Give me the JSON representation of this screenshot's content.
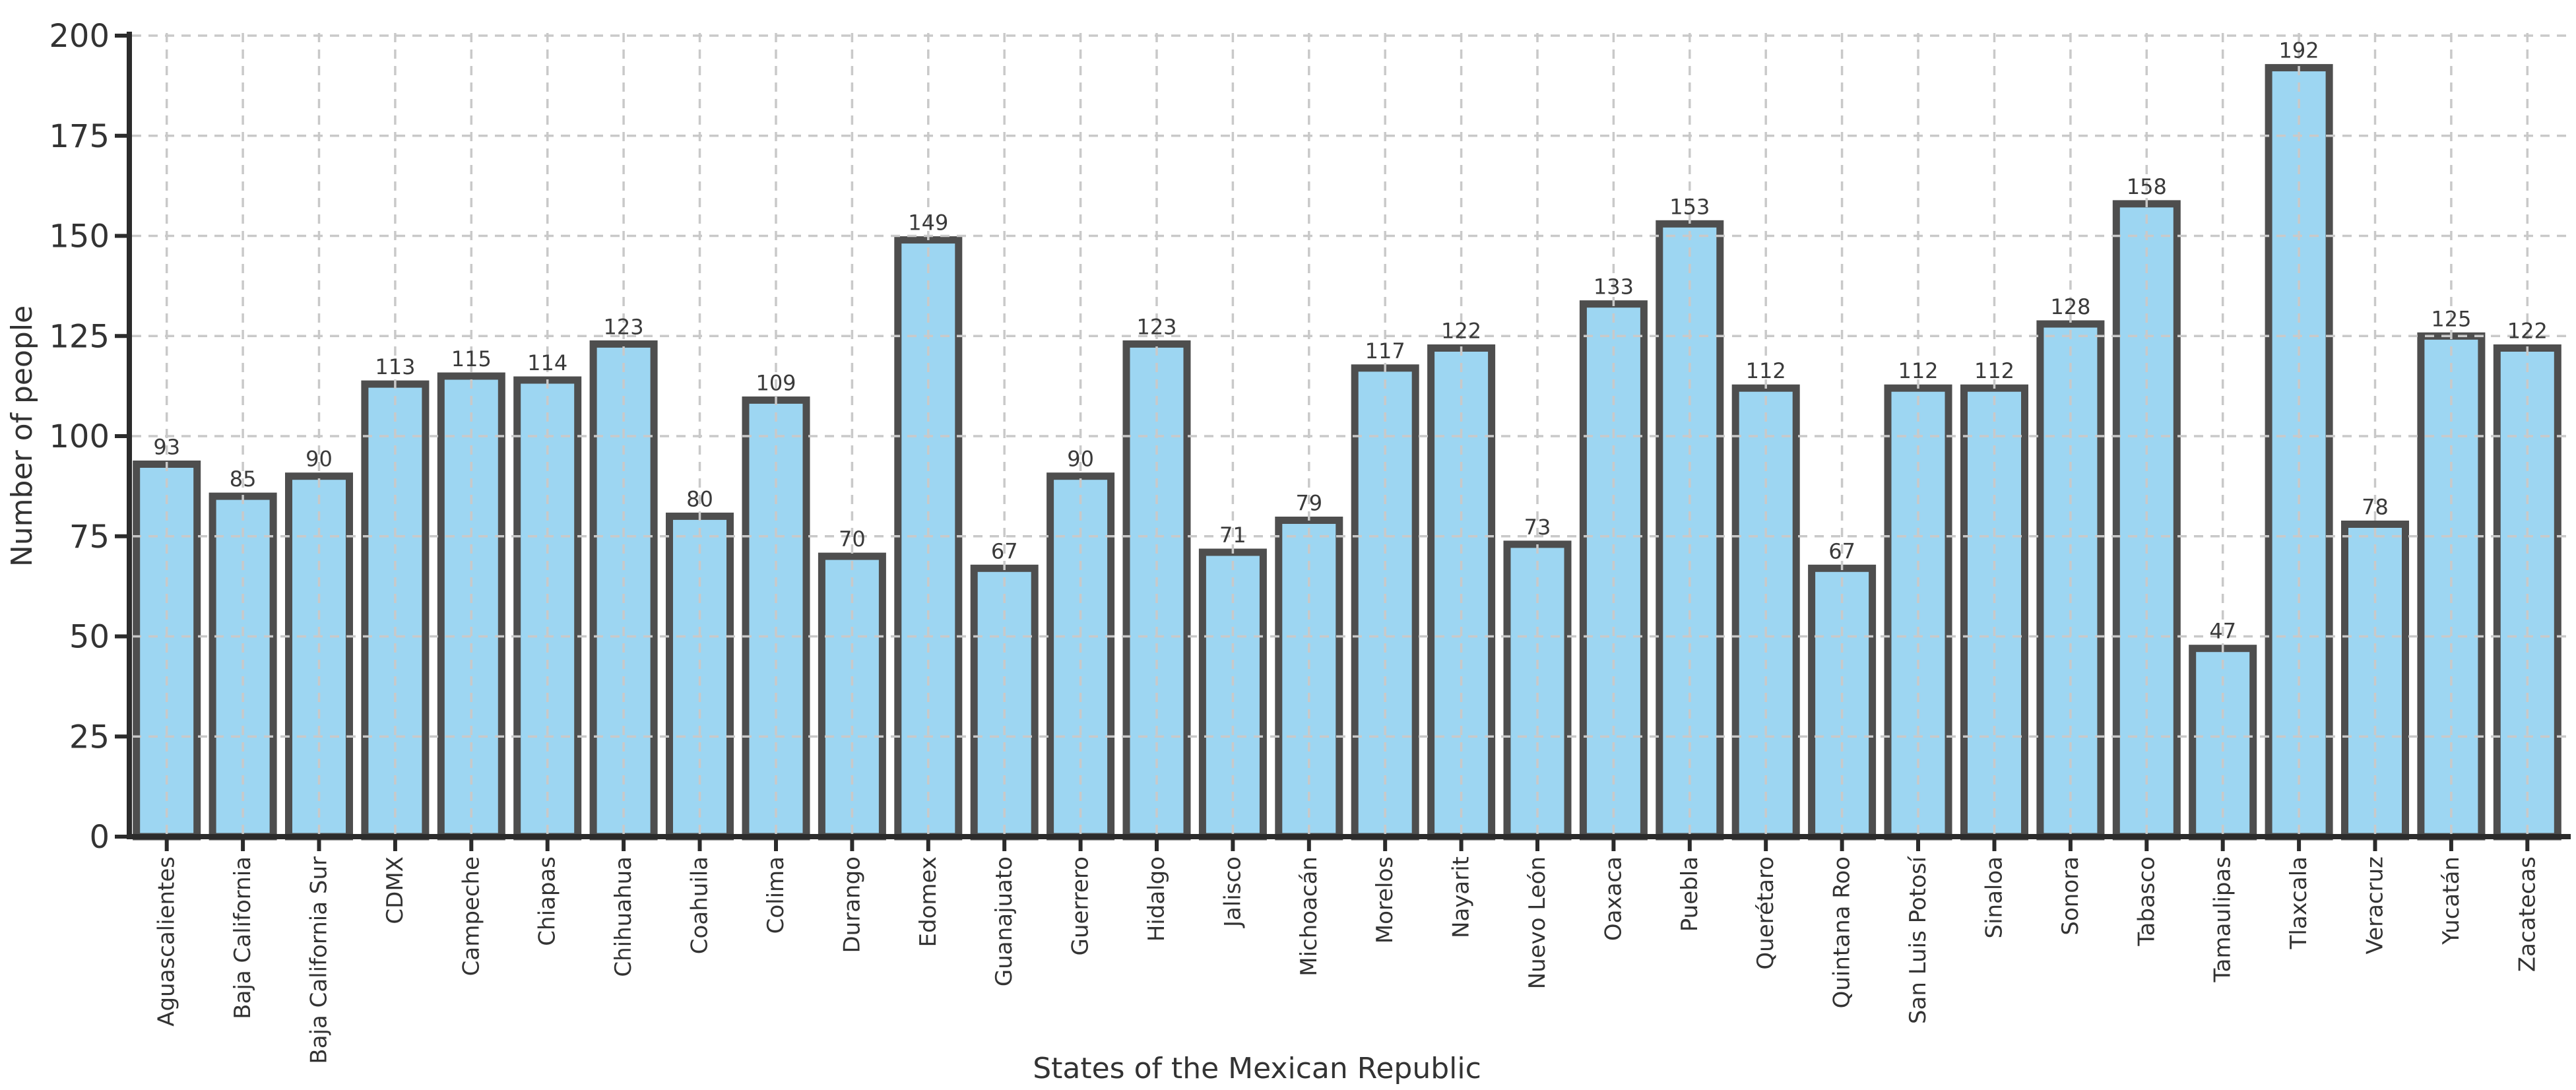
{
  "chart_data": {
    "type": "bar",
    "title": "",
    "xlabel": "States of the Mexican Republic",
    "ylabel": "Number of people",
    "categories": [
      "Aguascalientes",
      "Baja California",
      "Baja California Sur",
      "CDMX",
      "Campeche",
      "Chiapas",
      "Chihuahua",
      "Coahuila",
      "Colima",
      "Durango",
      "Edomex",
      "Guanajuato",
      "Guerrero",
      "Hidalgo",
      "Jalisco",
      "Michoacán",
      "Morelos",
      "Nayarit",
      "Nuevo León",
      "Oaxaca",
      "Puebla",
      "Querétaro",
      "Quintana Roo",
      "San Luis Potosí",
      "Sinaloa",
      "Sonora",
      "Tabasco",
      "Tamaulipas",
      "Tlaxcala",
      "Veracruz",
      "Yucatán",
      "Zacatecas"
    ],
    "values": [
      93,
      85,
      90,
      113,
      115,
      114,
      123,
      80,
      109,
      70,
      149,
      67,
      90,
      123,
      71,
      79,
      117,
      122,
      73,
      133,
      153,
      112,
      67,
      112,
      112,
      128,
      158,
      47,
      192,
      78,
      125,
      122
    ],
    "bar_value_labels": [
      93,
      85,
      90,
      113,
      115,
      114,
      123,
      80,
      109,
      70,
      149,
      67,
      90,
      123,
      71,
      79,
      117,
      122,
      73,
      133,
      153,
      112,
      67,
      112,
      112,
      128,
      158,
      47,
      192,
      78,
      125,
      122
    ],
    "ylim": [
      0,
      200
    ],
    "yticks": [
      0,
      25,
      50,
      75,
      100,
      125,
      150,
      175,
      200
    ],
    "grid": "dashed, horizontal and vertical, drawn over bars",
    "legend": "none",
    "x_tick_rotation_deg": 90,
    "colors": {
      "bar_fill": "#9DD6F2",
      "bar_edge": "#4E4E4E",
      "grid": "#C9C9C9",
      "spine": "#2B2B2B",
      "tick": "#2B2B2B",
      "text": "#333333",
      "background": "#FFFFFF"
    }
  }
}
